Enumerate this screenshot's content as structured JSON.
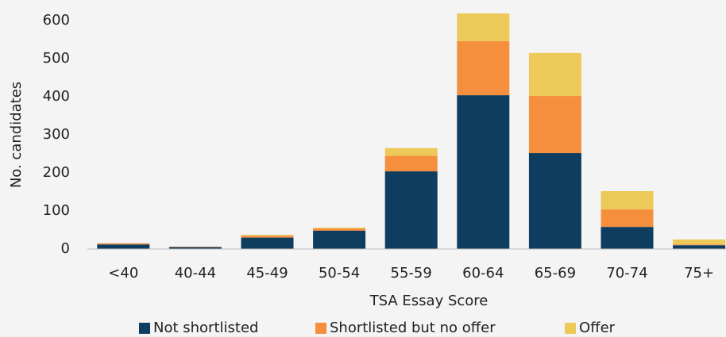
{
  "chart_data": {
    "type": "stacked_bar",
    "x_label": "TSA Essay Score",
    "y_label": "No. candidates",
    "categories": [
      "<40",
      "40-44",
      "45-49",
      "50-54",
      "55-59",
      "60-64",
      "65-69",
      "70-74",
      "75+"
    ],
    "series": [
      {
        "name": "Not shortlisted",
        "color": "#0e3d5f",
        "values": [
          12,
          5,
          30,
          48,
          204,
          404,
          252,
          58,
          10
        ]
      },
      {
        "name": "Shortlisted but no offer",
        "color": "#f58f3e",
        "values": [
          3,
          1,
          5,
          6,
          41,
          142,
          150,
          46,
          2
        ]
      },
      {
        "name": "Offer",
        "color": "#edc95a",
        "values": [
          0,
          0,
          2,
          2,
          20,
          73,
          113,
          48,
          13
        ]
      }
    ],
    "ylim": [
      0,
      600
    ],
    "yticks": [
      0,
      100,
      200,
      300,
      400,
      500,
      600
    ],
    "legend": "bottom"
  }
}
